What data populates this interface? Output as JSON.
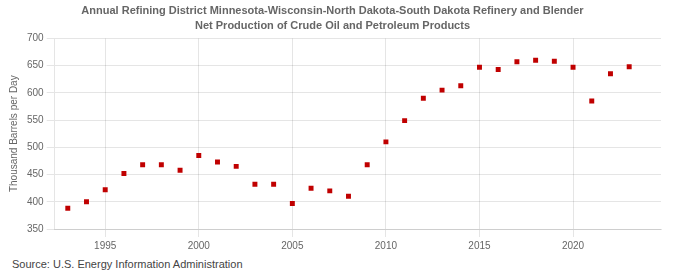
{
  "chart_data": {
    "type": "scatter",
    "title": "Annual Refining District Minnesota-Wisconsin-North Dakota-South Dakota Refinery and Blender",
    "subtitle": "Net Production of Crude Oil and Petroleum Products",
    "ylabel": "Thousand Barrels per Day",
    "annotation": "Source: U.S. Energy Information Administration",
    "x": [
      1993,
      1994,
      1995,
      1996,
      1997,
      1998,
      1999,
      2000,
      2001,
      2002,
      2003,
      2004,
      2005,
      2006,
      2007,
      2008,
      2009,
      2010,
      2011,
      2012,
      2013,
      2014,
      2015,
      2016,
      2017,
      2018,
      2019,
      2020,
      2021,
      2022,
      2023
    ],
    "values": [
      388,
      400,
      422,
      452,
      468,
      468,
      458,
      485,
      473,
      465,
      432,
      432,
      397,
      425,
      420,
      410,
      468,
      510,
      549,
      590,
      605,
      613,
      647,
      643,
      657,
      660,
      658,
      647,
      585,
      635,
      648
    ],
    "color": "#C00000",
    "marker": "square",
    "xlim": [
      1992.3,
      2024.7
    ],
    "xticks": [
      1995,
      2000,
      2005,
      2010,
      2015,
      2020
    ],
    "ylim": [
      350,
      700
    ],
    "yticks": [
      350,
      400,
      450,
      500,
      550,
      600,
      650,
      700
    ],
    "grid": true
  }
}
